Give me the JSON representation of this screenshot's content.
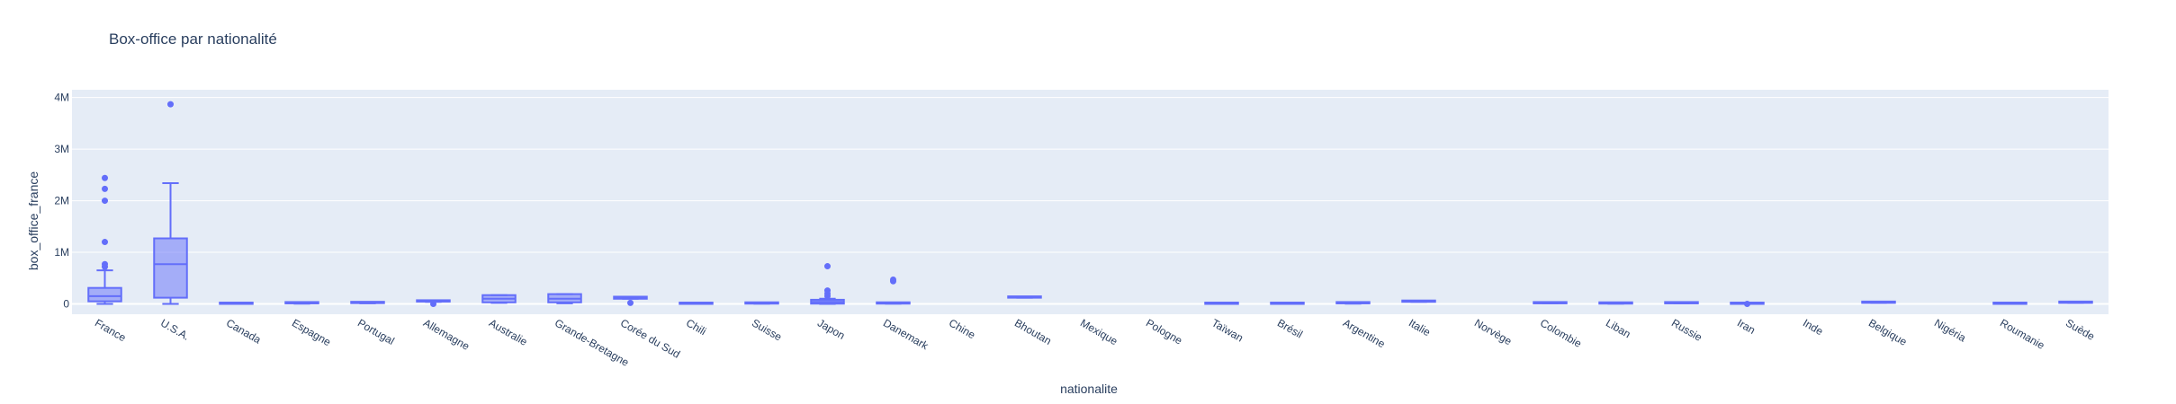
{
  "chart_data": {
    "type": "box",
    "title": "Box-office par nationalité",
    "xlabel": "nationalite",
    "ylabel": "box_office_france",
    "ylim": [
      -200000,
      4150000
    ],
    "y_ticks": [
      0,
      1000000,
      2000000,
      3000000,
      4000000
    ],
    "y_tick_labels": [
      "0",
      "1M",
      "2M",
      "3M",
      "4M"
    ],
    "grid": true,
    "colors": {
      "series": "#636efa",
      "fill": "rgba(99,110,250,0.5)",
      "plot_bg": "#e5ecf6",
      "grid": "#ffffff",
      "text": "#2a3f5f"
    },
    "categories": [
      "France",
      "U.S.A.",
      "Canada",
      "Espagne",
      "Portugal",
      "Allemagne",
      "Australie",
      "Grande-Bretagne",
      "Corée du Sud",
      "Chili",
      "Suisse",
      "Japon",
      "Danemark",
      "Chine",
      "Bhoutan",
      "Mexique",
      "Pologne",
      "Taïwan",
      "Brésil",
      "Argentine",
      "Italie",
      "Norvège",
      "Colombie",
      "Liban",
      "Russie",
      "Iran",
      "Inde",
      "Belgique",
      "Nigéria",
      "Roumanie",
      "Suède"
    ],
    "boxes": [
      {
        "min": 0,
        "q1": 50000,
        "median": 150000,
        "q3": 310000,
        "max": 650000,
        "outliers": [
          720000,
          770000,
          1200000,
          2000000,
          2230000,
          2440000
        ]
      },
      {
        "min": 0,
        "q1": 120000,
        "median": 770000,
        "q3": 1270000,
        "max": 2340000,
        "outliers": [
          3870000
        ]
      },
      {
        "min": 0,
        "q1": 0,
        "median": 0,
        "q3": 5000,
        "max": 5000,
        "outliers": []
      },
      {
        "min": 5000,
        "q1": 10000,
        "median": 15000,
        "q3": 20000,
        "max": 25000,
        "outliers": []
      },
      {
        "min": 10000,
        "q1": 15000,
        "median": 20000,
        "q3": 25000,
        "max": 30000,
        "outliers": []
      },
      {
        "min": 40000,
        "q1": 45000,
        "median": 50000,
        "q3": 55000,
        "max": 60000,
        "outliers": [
          0
        ]
      },
      {
        "min": 20000,
        "q1": 30000,
        "median": 100000,
        "q3": 170000,
        "max": 170000,
        "outliers": []
      },
      {
        "min": 10000,
        "q1": 30000,
        "median": 100000,
        "q3": 190000,
        "max": 190000,
        "outliers": []
      },
      {
        "min": 100000,
        "q1": 100000,
        "median": 110000,
        "q3": 140000,
        "max": 140000,
        "outliers": [
          20000
        ]
      },
      {
        "min": 0,
        "q1": 0,
        "median": 5000,
        "q3": 10000,
        "max": 10000,
        "outliers": []
      },
      {
        "min": 5000,
        "q1": 5000,
        "median": 10000,
        "q3": 15000,
        "max": 15000,
        "outliers": []
      },
      {
        "min": 0,
        "q1": 5000,
        "median": 40000,
        "q3": 80000,
        "max": 100000,
        "outliers": [
          150000,
          200000,
          260000,
          730000
        ]
      },
      {
        "min": 5000,
        "q1": 5000,
        "median": 10000,
        "q3": 15000,
        "max": 15000,
        "outliers": [
          440000,
          470000
        ]
      },
      {
        "min": null,
        "q1": null,
        "median": null,
        "q3": null,
        "max": null,
        "outliers": []
      },
      {
        "min": 120000,
        "q1": 120000,
        "median": 125000,
        "q3": 130000,
        "max": 130000,
        "outliers": []
      },
      {
        "min": null,
        "q1": null,
        "median": null,
        "q3": null,
        "max": null,
        "outliers": []
      },
      {
        "min": null,
        "q1": null,
        "median": null,
        "q3": null,
        "max": null,
        "outliers": []
      },
      {
        "min": 0,
        "q1": 0,
        "median": 5000,
        "q3": 10000,
        "max": 10000,
        "outliers": []
      },
      {
        "min": 0,
        "q1": 0,
        "median": 5000,
        "q3": 10000,
        "max": 10000,
        "outliers": []
      },
      {
        "min": 5000,
        "q1": 10000,
        "median": 15000,
        "q3": 20000,
        "max": 20000,
        "outliers": []
      },
      {
        "min": 40000,
        "q1": 40000,
        "median": 45000,
        "q3": 50000,
        "max": 50000,
        "outliers": []
      },
      {
        "min": null,
        "q1": null,
        "median": null,
        "q3": null,
        "max": null,
        "outliers": []
      },
      {
        "min": 10000,
        "q1": 10000,
        "median": 15000,
        "q3": 20000,
        "max": 20000,
        "outliers": []
      },
      {
        "min": 5000,
        "q1": 5000,
        "median": 10000,
        "q3": 15000,
        "max": 15000,
        "outliers": []
      },
      {
        "min": 10000,
        "q1": 10000,
        "median": 15000,
        "q3": 20000,
        "max": 20000,
        "outliers": []
      },
      {
        "min": 0,
        "q1": 0,
        "median": 5000,
        "q3": 10000,
        "max": 10000,
        "outliers": [
          0
        ]
      },
      {
        "min": null,
        "q1": null,
        "median": null,
        "q3": null,
        "max": null,
        "outliers": []
      },
      {
        "min": 20000,
        "q1": 20000,
        "median": 25000,
        "q3": 30000,
        "max": 30000,
        "outliers": []
      },
      {
        "min": null,
        "q1": null,
        "median": null,
        "q3": null,
        "max": null,
        "outliers": []
      },
      {
        "min": 0,
        "q1": 0,
        "median": 5000,
        "q3": 10000,
        "max": 10000,
        "outliers": []
      },
      {
        "min": 20000,
        "q1": 20000,
        "median": 25000,
        "q3": 30000,
        "max": 30000,
        "outliers": []
      }
    ]
  }
}
